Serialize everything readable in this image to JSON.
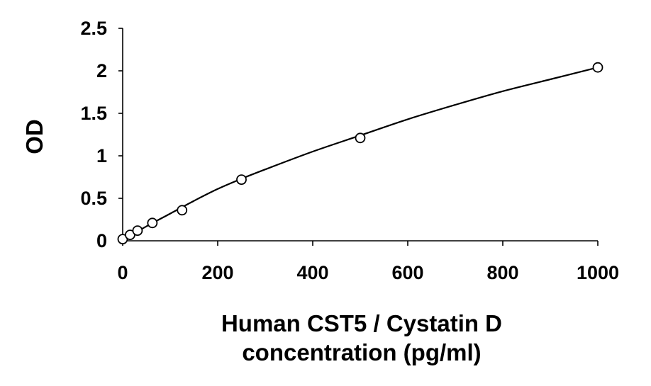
{
  "chart_data": {
    "type": "scatter",
    "title": "",
    "xlabel_lines": [
      "Human CST5 / Cystatin D",
      "concentration (pg/ml)"
    ],
    "ylabel": "OD",
    "xlim": [
      0,
      1000
    ],
    "ylim": [
      0,
      2.5
    ],
    "x_ticks": [
      0,
      200,
      400,
      600,
      800,
      1000
    ],
    "x_tick_labels": [
      "0",
      "200",
      "400",
      "600",
      "800",
      "1000"
    ],
    "y_ticks": [
      0,
      0.5,
      1,
      1.5,
      2,
      2.5
    ],
    "y_tick_labels": [
      "0",
      "0.5",
      "1",
      "1.5",
      "2",
      "2.5"
    ],
    "grid": false,
    "legend": "none",
    "series": [
      {
        "marker": "open-circle",
        "x": [
          0,
          15.6,
          31.25,
          62.5,
          125,
          250,
          500,
          1000
        ],
        "y": [
          0.02,
          0.07,
          0.12,
          0.21,
          0.36,
          0.72,
          1.21,
          2.04
        ]
      }
    ],
    "fit_curve": {
      "type": "smooth-fit",
      "x": [
        0,
        50,
        100,
        150,
        200,
        250,
        300,
        400,
        500,
        600,
        700,
        800,
        900,
        1000
      ],
      "y": [
        0.01,
        0.17,
        0.32,
        0.47,
        0.61,
        0.73,
        0.84,
        1.05,
        1.24,
        1.43,
        1.6,
        1.76,
        1.9,
        2.04
      ]
    },
    "colors": {
      "axis": "#000000",
      "marker_stroke": "#000000",
      "marker_fill": "#ffffff",
      "curve": "#000000"
    }
  }
}
